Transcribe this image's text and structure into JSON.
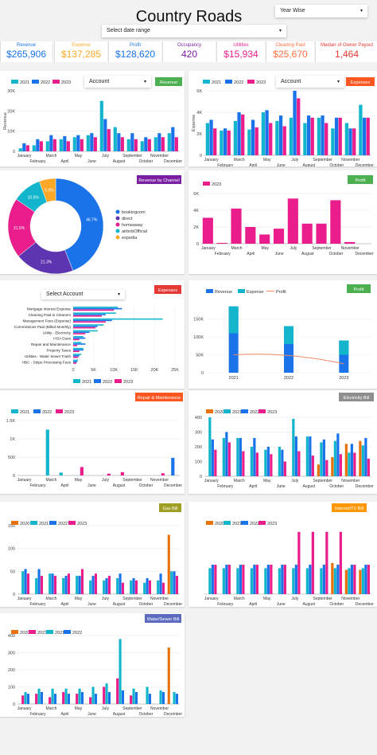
{
  "header": {
    "title": "Country Roads",
    "year_wise": "Year Wise",
    "date_range": "Select date range",
    "account": "Account",
    "select_account": "Select Account"
  },
  "kpis": [
    {
      "label": "Revenue",
      "value": "$265,906",
      "color": "#1a73e8"
    },
    {
      "label": "Expense",
      "value": "$137,285",
      "color": "#f9a825"
    },
    {
      "label": "Profit",
      "value": "$128,620",
      "color": "#1a73e8"
    },
    {
      "label": "Occupancy",
      "value": "420",
      "color": "#7b1fa2"
    },
    {
      "label": "Utilities",
      "value": "$15,934",
      "color": "#e91e8c"
    },
    {
      "label": "Cleaning Paid",
      "value": "$25,670",
      "color": "#ff7043"
    },
    {
      "label": "Median of Owner Payout",
      "value": "1,464",
      "color": "#e53935"
    }
  ],
  "colors": {
    "c2020": "#e8710a",
    "c2021": "#12b5cb",
    "c2022": "#1a73e8",
    "c2023": "#e91e8c",
    "green": "#4caf50",
    "orange": "#ff5722",
    "purple": "#7b1fa2",
    "red": "#e53935",
    "grey": "#8e8e8e",
    "olive": "#9e9d24",
    "amber": "#ff9800",
    "slate": "#5c6bc0"
  },
  "months": [
    "January",
    "February",
    "March",
    "April",
    "May",
    "June",
    "July",
    "August",
    "September",
    "October",
    "November",
    "December"
  ],
  "chart_data": [
    {
      "id": "revenue",
      "type": "bar",
      "badge": "Revenue",
      "badge_color": "#4caf50",
      "ylabel": "Revenue",
      "yticks": [
        "0",
        "10K",
        "20K",
        "30K"
      ],
      "ylim": [
        0,
        30000
      ],
      "series": [
        {
          "name": "2021",
          "color": "#12b5cb",
          "values": [
            1500,
            3000,
            5000,
            6000,
            7000,
            8000,
            25000,
            12000,
            6000,
            5000,
            7000,
            9000
          ]
        },
        {
          "name": "2022",
          "color": "#1a73e8",
          "values": [
            4000,
            6000,
            8000,
            7500,
            8000,
            9000,
            16000,
            9000,
            9000,
            7000,
            9000,
            12000
          ]
        },
        {
          "name": "2023",
          "color": "#e91e8c",
          "values": [
            3000,
            5000,
            6000,
            5000,
            6000,
            7000,
            11000,
            7000,
            6000,
            6000,
            7000,
            7000
          ]
        }
      ]
    },
    {
      "id": "expenses",
      "type": "bar",
      "badge": "Expenses",
      "badge_color": "#ff5722",
      "ylabel": "Expense",
      "yticks": [
        "0",
        "2K",
        "4K",
        "6K"
      ],
      "ylim": [
        0,
        6000
      ],
      "series": [
        {
          "name": "2021",
          "color": "#12b5cb",
          "values": [
            3000,
            2300,
            3200,
            2400,
            4000,
            3200,
            3500,
            3000,
            3500,
            2500,
            3000,
            4700
          ]
        },
        {
          "name": "2022",
          "color": "#1a73e8",
          "values": [
            3300,
            2500,
            4000,
            3300,
            4200,
            3700,
            6000,
            3700,
            3700,
            3500,
            2500,
            3500
          ]
        },
        {
          "name": "2023",
          "color": "#e91e8c",
          "values": [
            2500,
            2300,
            3800,
            2600,
            3000,
            2700,
            5300,
            3500,
            3000,
            3500,
            2500,
            3500
          ]
        }
      ]
    },
    {
      "id": "channel",
      "type": "pie",
      "badge": "Revenue by Channel",
      "badge_color": "#7b1fa2",
      "slices": [
        {
          "name": "bookingcom",
          "value": 46.7,
          "color": "#1a73e8"
        },
        {
          "name": "direct",
          "value": 21.3,
          "color": "#5e35b1"
        },
        {
          "name": "homeaway",
          "value": 21.5,
          "color": "#e91e8c"
        },
        {
          "name": "airbnbOfficial",
          "value": 10.5,
          "color": "#12b5cb"
        },
        {
          "name": "expedia",
          "value": 5.9,
          "color": "#ffa726"
        }
      ]
    },
    {
      "id": "profit_month",
      "type": "bar",
      "badge": "Profit",
      "badge_color": "#4caf50",
      "yticks": [
        "0",
        "2K",
        "4K",
        "6K"
      ],
      "ylim": [
        0,
        6000
      ],
      "series": [
        {
          "name": "2023",
          "color": "#e91e8c",
          "values": [
            3100,
            100,
            4200,
            2000,
            1100,
            1800,
            5400,
            2400,
            2400,
            5200,
            200,
            0
          ]
        }
      ]
    },
    {
      "id": "expense_cat",
      "type": "bar",
      "orientation": "horizontal",
      "badge": "Expenses",
      "badge_color": "#e53935",
      "xticks": [
        "0",
        "5K",
        "10K",
        "15K",
        "20K",
        "25K"
      ],
      "xlim": [
        0,
        25000
      ],
      "categories": [
        "Mortgage Interest Expense",
        "Cleaning Paid to Cleaners",
        "Management Fees (Expense)",
        "Commissions Paid (Billed Monthly)",
        "Utility - Electricity",
        "HOA Dues",
        "Repair and Maintenance",
        "Property Taxes",
        "Utilities - Water Sewer Trash",
        "HBC - Stripe Processing Fees"
      ],
      "series": [
        {
          "name": "2021",
          "color": "#12b5cb",
          "values": [
            11000,
            10500,
            22000,
            7500,
            6000,
            2500,
            2000,
            2500,
            2000,
            1200
          ]
        },
        {
          "name": "2022",
          "color": "#1a73e8",
          "values": [
            12000,
            8000,
            9500,
            6000,
            4000,
            3000,
            3000,
            2500,
            1500,
            1000
          ]
        },
        {
          "name": "2023",
          "color": "#e91e8c",
          "values": [
            10000,
            7000,
            8000,
            5500,
            3000,
            1500,
            1000,
            1500,
            1200,
            800
          ]
        }
      ]
    },
    {
      "id": "profit_year",
      "type": "bar+line",
      "badge": "Profit",
      "badge_color": "#4caf50",
      "categories": [
        "2021",
        "2022",
        "2023"
      ],
      "yticks": [
        "0",
        "50K",
        "100K",
        "150K"
      ],
      "ylim": [
        0,
        200000
      ],
      "series": [
        {
          "name": "Revenue",
          "color": "#1a73e8",
          "values": [
            185000,
            130000,
            90000
          ]
        },
        {
          "name": "Expense",
          "color": "#12b5cb",
          "values": [
            75000,
            50000,
            40000
          ]
        },
        {
          "name": "Profit",
          "color": "#ef8a65",
          "values": [
            50000,
            48000,
            25000
          ]
        }
      ]
    },
    {
      "id": "repair",
      "type": "bar",
      "badge": "Repair & Maintenance",
      "badge_color": "#ff5722",
      "yticks": [
        "0",
        "500",
        "1K",
        "1.5K"
      ],
      "ylim": [
        0,
        1500
      ],
      "series": [
        {
          "name": "2021",
          "color": "#12b5cb",
          "values": [
            0,
            0,
            1250,
            80,
            0,
            0,
            0,
            0,
            0,
            0,
            0,
            0
          ]
        },
        {
          "name": "2022",
          "color": "#1a73e8",
          "values": [
            0,
            0,
            0,
            0,
            0,
            0,
            0,
            0,
            0,
            0,
            0,
            480
          ]
        },
        {
          "name": "2023",
          "color": "#e91e8c",
          "values": [
            0,
            0,
            0,
            0,
            230,
            0,
            50,
            90,
            0,
            0,
            60,
            0
          ]
        }
      ]
    },
    {
      "id": "electricity",
      "type": "bar",
      "badge": "Electricity Bill",
      "badge_color": "#8e8e8e",
      "yticks": [
        "0",
        "100",
        "200",
        "300",
        "400"
      ],
      "ylim": [
        0,
        400
      ],
      "series": [
        {
          "name": "2020",
          "color": "#e8710a",
          "values": [
            0,
            0,
            0,
            0,
            0,
            0,
            0,
            0,
            80,
            130,
            220,
            240
          ]
        },
        {
          "name": "2021",
          "color": "#12b5cb",
          "values": [
            400,
            260,
            260,
            200,
            180,
            200,
            390,
            270,
            230,
            240,
            160,
            210
          ]
        },
        {
          "name": "2022",
          "color": "#1a73e8",
          "values": [
            250,
            300,
            260,
            260,
            200,
            180,
            270,
            270,
            250,
            290,
            220,
            260
          ]
        },
        {
          "name": "2023",
          "color": "#e91e8c",
          "values": [
            180,
            230,
            170,
            160,
            150,
            100,
            170,
            140,
            110,
            150,
            160,
            120
          ]
        }
      ]
    },
    {
      "id": "gas",
      "type": "bar",
      "badge": "Gas Bill",
      "badge_color": "#9e9d24",
      "yticks": [
        "0",
        "50",
        "100",
        "150"
      ],
      "ylim": [
        0,
        150
      ],
      "series": [
        {
          "name": "2020",
          "color": "#e8710a",
          "values": [
            0,
            0,
            0,
            0,
            0,
            0,
            0,
            0,
            0,
            0,
            0,
            130
          ]
        },
        {
          "name": "2021",
          "color": "#12b5cb",
          "values": [
            50,
            35,
            45,
            35,
            40,
            30,
            30,
            35,
            30,
            25,
            30,
            50
          ]
        },
        {
          "name": "2022",
          "color": "#1a73e8",
          "values": [
            55,
            55,
            45,
            40,
            40,
            40,
            35,
            45,
            35,
            35,
            45,
            50
          ]
        },
        {
          "name": "2023",
          "color": "#e91e8c",
          "values": [
            45,
            40,
            40,
            45,
            55,
            45,
            40,
            25,
            30,
            30,
            25,
            40
          ]
        }
      ]
    },
    {
      "id": "internet",
      "type": "bar",
      "badge": "Internet/TV Bill",
      "badge_color": "#ff9800",
      "series": [
        {
          "name": "2020",
          "color": "#e8710a",
          "values": [
            0,
            0,
            0,
            0,
            0,
            0,
            0,
            0,
            0,
            90,
            70,
            70
          ]
        },
        {
          "name": "2021",
          "color": "#12b5cb",
          "values": [
            75,
            75,
            75,
            75,
            75,
            75,
            75,
            75,
            75,
            75,
            75,
            75
          ]
        },
        {
          "name": "2022",
          "color": "#1a73e8",
          "values": [
            85,
            85,
            85,
            85,
            85,
            85,
            85,
            85,
            85,
            85,
            85,
            85
          ]
        },
        {
          "name": "2023",
          "color": "#e91e8c",
          "values": [
            85,
            85,
            85,
            85,
            85,
            85,
            180,
            180,
            180,
            180,
            85,
            85
          ]
        }
      ]
    },
    {
      "id": "water",
      "type": "bar",
      "badge": "Water/Sewer Bill",
      "badge_color": "#5c6bc0",
      "yticks": [
        "0",
        "100",
        "200",
        "300",
        "400"
      ],
      "ylim": [
        0,
        400
      ],
      "series": [
        {
          "name": "2020",
          "color": "#e8710a",
          "values": [
            0,
            0,
            0,
            0,
            0,
            0,
            0,
            0,
            0,
            0,
            0,
            330
          ]
        },
        {
          "name": "2023",
          "color": "#e91e8c",
          "values": [
            50,
            60,
            40,
            70,
            60,
            40,
            100,
            150,
            50,
            0,
            0,
            0
          ]
        },
        {
          "name": "2021",
          "color": "#12b5cb",
          "values": [
            70,
            90,
            90,
            90,
            90,
            100,
            120,
            380,
            90,
            100,
            80,
            70
          ]
        },
        {
          "name": "2022",
          "color": "#1a73e8",
          "values": [
            60,
            70,
            60,
            60,
            70,
            60,
            70,
            80,
            70,
            60,
            70,
            60
          ]
        }
      ]
    }
  ]
}
